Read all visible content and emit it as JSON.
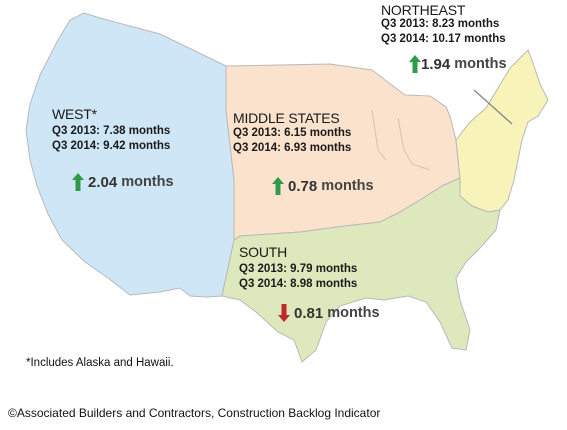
{
  "regions": {
    "west": {
      "name": "WEST*",
      "q3_2013": "Q3 2013: 7.38 months",
      "q3_2014": "Q3 2014: 9.42 months",
      "change_value": "2.04",
      "change_unit": "months",
      "direction": "up",
      "fill": "#cfe6f7"
    },
    "middle": {
      "name": "MIDDLE STATES",
      "q3_2013": "Q3 2013: 6.15 months",
      "q3_2014": "Q3 2014: 6.93 months",
      "change_value": "0.78",
      "change_unit": "months",
      "direction": "up",
      "fill": "#fbe2cc"
    },
    "northeast": {
      "name": "NORTHEAST",
      "q3_2013": "Q3 2013: 8.23 months",
      "q3_2014": "Q3 2014: 10.17 months",
      "change_value": "1.94",
      "change_unit": "months",
      "direction": "up",
      "fill": "#f8f3b8"
    },
    "south": {
      "name": "SOUTH",
      "q3_2013": "Q3 2013: 9.79 months",
      "q3_2014": "Q3 2014: 8.98 months",
      "change_value": "0.81",
      "change_unit": "months",
      "direction": "down",
      "fill": "#dde9bd"
    }
  },
  "colors": {
    "up_arrow": "#2e9b4a",
    "down_arrow": "#c0282d",
    "border": "#b9b9b9"
  },
  "footnote": "*Includes Alaska and Hawaii.",
  "credit": "©Associated Builders and Contractors, Construction Backlog Indicator"
}
